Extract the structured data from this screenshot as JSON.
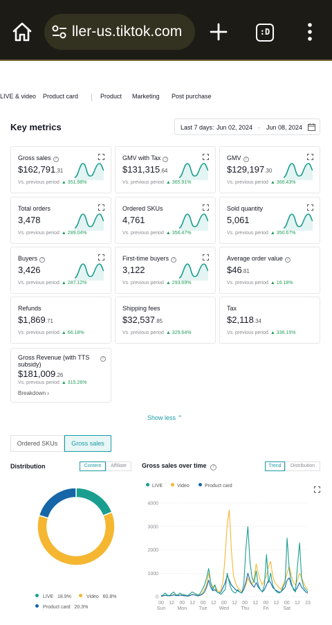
{
  "browser": {
    "url": "ller-us.tiktok.com",
    "tabs_label": ":D"
  },
  "nav": {
    "items": [
      "LIVE & video",
      "Product card",
      "Product",
      "Marketing",
      "Post purchase"
    ]
  },
  "key_metrics": {
    "title": "Key metrics",
    "date_prefix": "Last 7 days:",
    "date_start": "Jun 02, 2024",
    "date_dash": "-",
    "date_end": "Jun 08, 2024"
  },
  "metrics": [
    {
      "name": "Gross sales",
      "info": true,
      "expand": true,
      "value_main": "$162,791",
      "value_frac": ".31",
      "cmp": "Vs. previous period",
      "change": "351.98%",
      "spark": true
    },
    {
      "name": "GMV with Tax",
      "info": true,
      "expand": true,
      "value_main": "$131,315",
      "value_frac": ".64",
      "cmp": "Vs. previous period",
      "change": "365.91%",
      "spark": true
    },
    {
      "name": "GMV",
      "info": true,
      "expand": true,
      "value_main": "$129,197",
      "value_frac": ".30",
      "cmp": "Vs. previous period",
      "change": "366.43%",
      "spark": true
    },
    {
      "name": "Total orders",
      "info": false,
      "expand": true,
      "value_main": "3,478",
      "value_frac": "",
      "cmp": "Vs. previous period",
      "change": "289.04%",
      "spark": true
    },
    {
      "name": "Ordered SKUs",
      "info": false,
      "expand": true,
      "value_main": "4,761",
      "value_frac": "",
      "cmp": "Vs. previous period",
      "change": "356.47%",
      "spark": true
    },
    {
      "name": "Sold quantity",
      "info": false,
      "expand": true,
      "value_main": "5,061",
      "value_frac": "",
      "cmp": "Vs. previous period",
      "change": "350.67%",
      "spark": true
    },
    {
      "name": "Buyers",
      "info": true,
      "expand": true,
      "value_main": "3,426",
      "value_frac": "",
      "cmp": "Vs. previous period",
      "change": "287.12%",
      "spark": true
    },
    {
      "name": "First-time buyers",
      "info": true,
      "expand": true,
      "value_main": "3,122",
      "value_frac": "",
      "cmp": "Vs. previous period",
      "change": "293.69%",
      "spark": true
    },
    {
      "name": "Average order value",
      "info": true,
      "expand": false,
      "value_main": "$46",
      "value_frac": ".81",
      "cmp": "Vs. previous period",
      "change": "16.18%",
      "spark": false
    },
    {
      "name": "Refunds",
      "info": false,
      "expand": false,
      "value_main": "$1,869",
      "value_frac": ".71",
      "cmp": "Vs. previous period",
      "change": "66.18%",
      "spark": false
    },
    {
      "name": "Shipping fees",
      "info": false,
      "expand": false,
      "value_main": "$32,537",
      "value_frac": ".85",
      "cmp": "Vs. previous period",
      "change": "329.64%",
      "spark": false
    },
    {
      "name": "Tax",
      "info": false,
      "expand": false,
      "value_main": "$2,118",
      "value_frac": ".34",
      "cmp": "Vs. previous period",
      "change": "336.15%",
      "spark": false
    }
  ],
  "gross_revenue": {
    "name": "Gross Revenue (with TTS subsidy)",
    "value_main": "$181,009",
    "value_frac": ".26",
    "cmp": "Vs. previous period",
    "change": "315.26%",
    "breakdown": "Breakdown"
  },
  "show_less": "Show less",
  "view_toggle": {
    "options": [
      "Ordered SKUs",
      "Gross sales"
    ],
    "active": 1
  },
  "distribution": {
    "title": "Distribution",
    "tabs": [
      "Content",
      "Affiliate"
    ],
    "active_tab": 0
  },
  "gross_over_time": {
    "title": "Gross sales over time",
    "tabs": [
      "Trend",
      "Distribution"
    ],
    "active_tab": 0
  },
  "colors": {
    "live": "#1a9e8f",
    "video": "#f5b731",
    "product_card": "#1766a8",
    "accent": "#1a9aa5",
    "positive": "#229e5a"
  },
  "chart_data": [
    {
      "type": "pie",
      "variant": "donut",
      "labels": [
        "LIVE",
        "Video",
        "Product card"
      ],
      "values": [
        18.9,
        60.8,
        20.3
      ],
      "value_labels": [
        "18.9%",
        "60.8%",
        "20.3%"
      ],
      "legend": "bottom"
    },
    {
      "type": "line",
      "legend": "top",
      "ylim": [
        0,
        4000
      ],
      "yticks": [
        0,
        1000,
        2000,
        3000,
        4000
      ],
      "ytick_labels": [
        "0",
        "1000",
        "2000",
        "3000",
        "4000"
      ],
      "xtick_hours": [
        "00",
        "12",
        "00",
        "12",
        "00",
        "12",
        "00",
        "12",
        "00",
        "12",
        "00",
        "12",
        "00",
        "12",
        "23"
      ],
      "xtick_days": [
        "Sun",
        "Mon",
        "Tue",
        "Wed",
        "Thu",
        "Fri",
        "Sat"
      ],
      "series": [
        {
          "name": "LIVE",
          "values": [
            30,
            80,
            150,
            60,
            40,
            120,
            200,
            90,
            60,
            150,
            100,
            80,
            60,
            40,
            120,
            200,
            150,
            100,
            60,
            150,
            300,
            500,
            800,
            1200,
            600,
            300,
            500,
            200,
            150,
            100,
            200,
            300,
            1000,
            600,
            300,
            200,
            150,
            300,
            200,
            150,
            500,
            2000,
            3000,
            1500,
            800,
            600,
            1100,
            500,
            300,
            200,
            500,
            1800,
            600,
            1000,
            500,
            300,
            200,
            150,
            200,
            400,
            600,
            2500,
            1200,
            600,
            300,
            200,
            1300,
            2300,
            800,
            400,
            300,
            200
          ]
        },
        {
          "name": "Video",
          "values": [
            20,
            40,
            60,
            50,
            40,
            60,
            80,
            60,
            50,
            70,
            60,
            50,
            40,
            30,
            60,
            90,
            80,
            60,
            40,
            80,
            150,
            300,
            500,
            1000,
            600,
            400,
            500,
            300,
            200,
            300,
            700,
            1800,
            3100,
            3700,
            2000,
            900,
            600,
            400,
            300,
            200,
            300,
            500,
            800,
            600,
            500,
            800,
            1400,
            1000,
            700,
            500,
            700,
            900,
            1300,
            1500,
            900,
            600,
            500,
            400,
            300,
            500,
            700,
            1000,
            1300,
            900,
            600,
            500,
            700,
            1000,
            800,
            600,
            400,
            300
          ]
        },
        {
          "name": "Product card",
          "values": [
            10,
            30,
            60,
            40,
            30,
            50,
            70,
            50,
            40,
            60,
            50,
            40,
            30,
            20,
            50,
            80,
            70,
            50,
            30,
            60,
            100,
            200,
            400,
            700,
            400,
            250,
            300,
            200,
            150,
            200,
            400,
            600,
            900,
            700,
            500,
            400,
            300,
            250,
            200,
            150,
            300,
            600,
            1000,
            700,
            500,
            400,
            600,
            400,
            300,
            200,
            300,
            500,
            700,
            600,
            400,
            300,
            250,
            200,
            200,
            300,
            400,
            700,
            800,
            500,
            350,
            250,
            400,
            600,
            400,
            300,
            200,
            150
          ]
        }
      ]
    }
  ]
}
